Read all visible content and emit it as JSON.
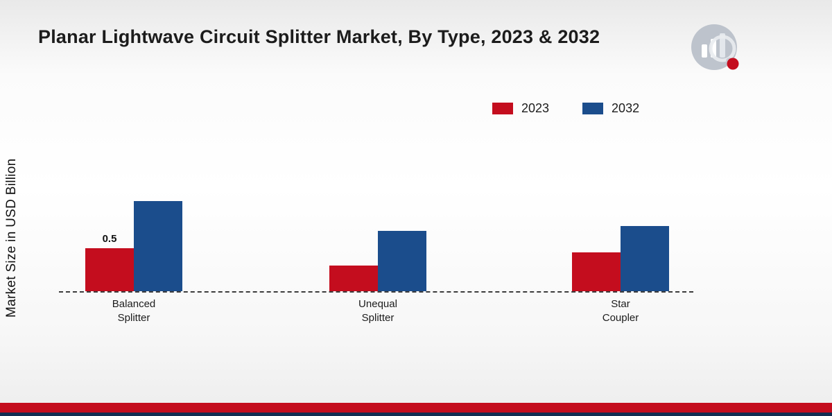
{
  "title": "Planar Lightwave Circuit Splitter Market, By Type, 2023 & 2032",
  "y_axis_label": "Market Size in USD Billion",
  "colors": {
    "series_2023": "#c40d1e",
    "series_2032": "#1b4d8c",
    "footer_red": "#c40d1e",
    "footer_navy": "#132e52"
  },
  "legend": [
    {
      "label": "2023",
      "color": "#c40d1e"
    },
    {
      "label": "2032",
      "color": "#1b4d8c"
    }
  ],
  "chart_data": {
    "type": "bar",
    "title": "Planar Lightwave Circuit Splitter Market, By Type, 2023 & 2032",
    "xlabel": "",
    "ylabel": "Market Size in USD Billion",
    "categories": [
      "Balanced\nSplitter",
      "Unequal\nSplitter",
      "Star\nCoupler"
    ],
    "series": [
      {
        "name": "2023",
        "color": "#c40d1e",
        "values": [
          0.5,
          0.3,
          0.45
        ],
        "value_labels": [
          "0.5",
          "",
          ""
        ]
      },
      {
        "name": "2032",
        "color": "#1b4d8c",
        "values": [
          1.05,
          0.7,
          0.76
        ],
        "value_labels": [
          "",
          "",
          ""
        ]
      }
    ],
    "ylim": [
      0,
      1.2
    ],
    "grid": false,
    "legend_position": "top-right",
    "baseline_style": "dashed",
    "annotations": [
      "0.5 label shown on Balanced Splitter 2023 bar"
    ]
  }
}
